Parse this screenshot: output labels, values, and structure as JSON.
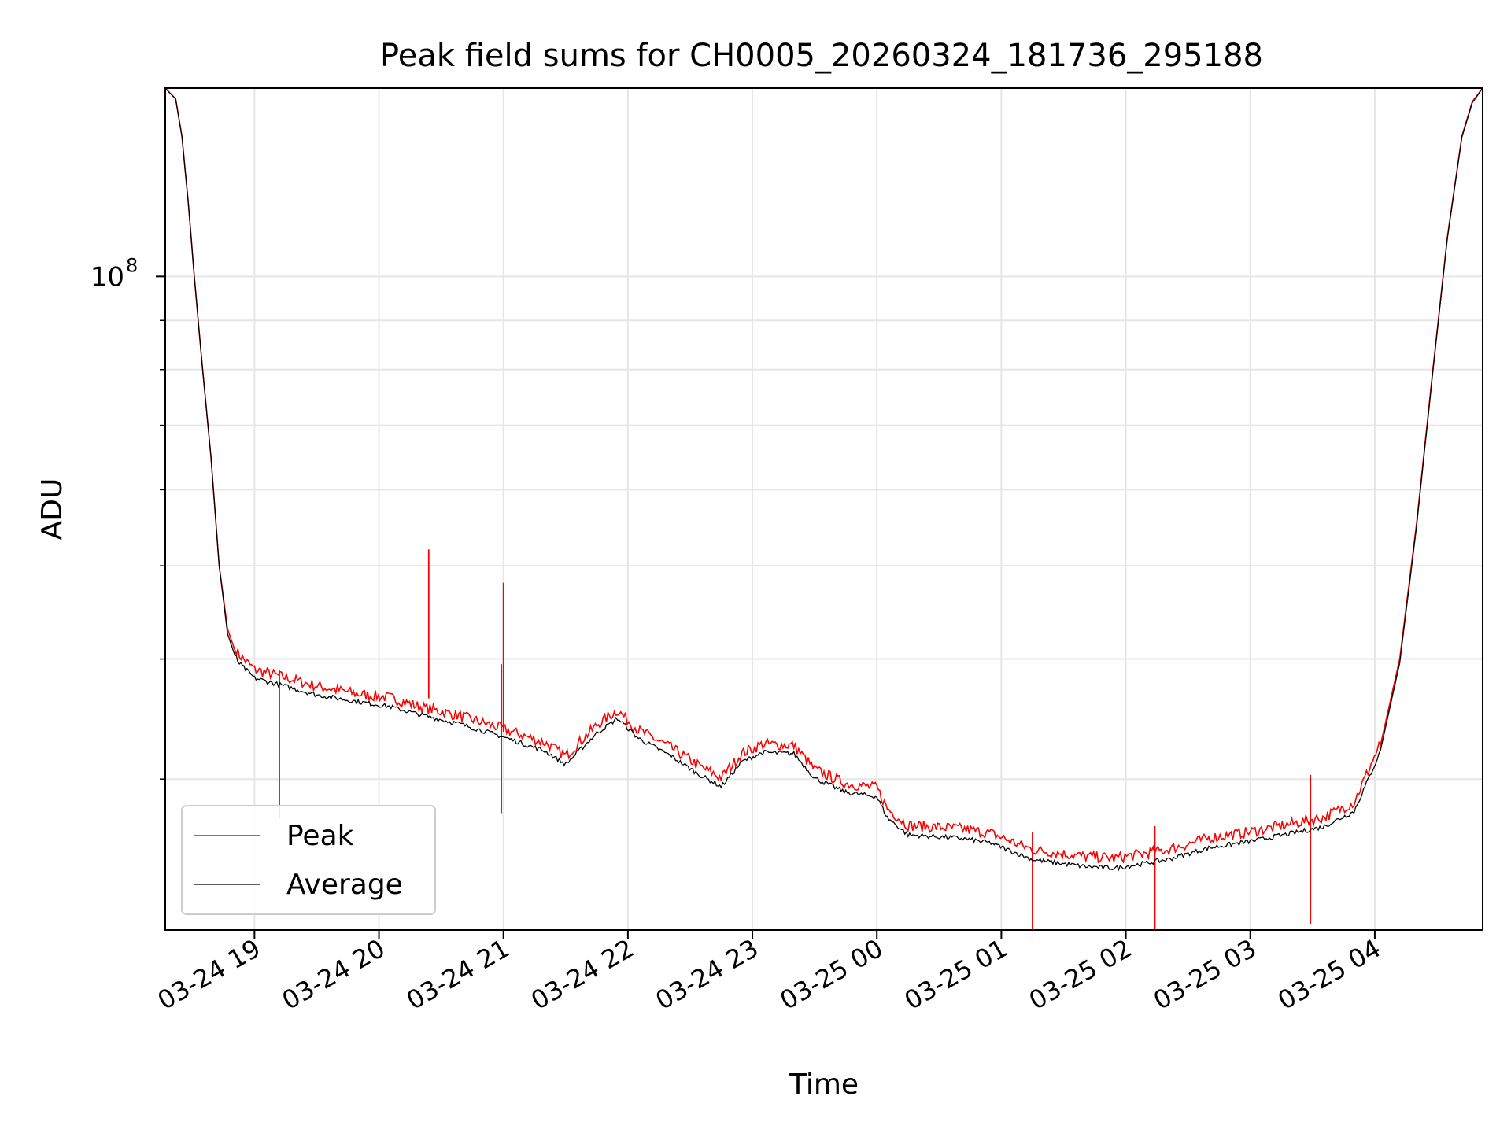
{
  "chart_data": {
    "type": "line",
    "title": "Peak field sums for CH0005_20260324_181736_295188",
    "xlabel": "Time",
    "ylabel": "ADU",
    "yscale": "log",
    "xlim": [
      "2026-03-24 18:17",
      "2026-03-25 04:52"
    ],
    "ylim": [
      20900000,
      157000000
    ],
    "x_tick_labels": [
      "03-24 19",
      "03-24 20",
      "03-24 21",
      "03-24 22",
      "03-24 23",
      "03-25 00",
      "03-25 01",
      "03-25 02",
      "03-25 03",
      "03-25 04"
    ],
    "y_tick_labels": [
      {
        "base": "10",
        "exp": "8"
      }
    ],
    "grid": true,
    "legend_position": "lower-left",
    "series": [
      {
        "name": "Peak",
        "color": "#ff0000",
        "points": [
          [
            "2026-03-24 18:17",
            157000000
          ],
          [
            "2026-03-24 18:22",
            153000000
          ],
          [
            "2026-03-24 18:25",
            140000000
          ],
          [
            "2026-03-24 18:28",
            120000000
          ],
          [
            "2026-03-24 18:31",
            100000000
          ],
          [
            "2026-03-24 18:35",
            80000000
          ],
          [
            "2026-03-24 18:39",
            65000000
          ],
          [
            "2026-03-24 18:43",
            50000000
          ],
          [
            "2026-03-24 18:47",
            43000000
          ],
          [
            "2026-03-24 18:52",
            40000000
          ],
          [
            "2026-03-24 19:00",
            38500000
          ],
          [
            "2026-03-24 19:10",
            38000000
          ],
          [
            "2026-03-24 19:30",
            37000000
          ],
          [
            "2026-03-24 19:50",
            36300000
          ],
          [
            "2026-03-24 20:05",
            36000000
          ],
          [
            "2026-03-24 20:20",
            35200000
          ],
          [
            "2026-03-24 20:40",
            34400000
          ],
          [
            "2026-03-24 21:00",
            33400000
          ],
          [
            "2026-03-24 21:20",
            32300000
          ],
          [
            "2026-03-24 21:30",
            31300000
          ],
          [
            "2026-03-24 21:45",
            33700000
          ],
          [
            "2026-03-24 21:55",
            34900000
          ],
          [
            "2026-03-24 22:05",
            33300000
          ],
          [
            "2026-03-24 22:20",
            32000000
          ],
          [
            "2026-03-24 22:35",
            30500000
          ],
          [
            "2026-03-24 22:45",
            29700000
          ],
          [
            "2026-03-24 22:55",
            31500000
          ],
          [
            "2026-03-24 23:05",
            32200000
          ],
          [
            "2026-03-24 23:20",
            32100000
          ],
          [
            "2026-03-24 23:30",
            30300000
          ],
          [
            "2026-03-24 23:45",
            29300000
          ],
          [
            "2026-03-25 00:00",
            29000000
          ],
          [
            "2026-03-25 00:05",
            27600000
          ],
          [
            "2026-03-25 00:15",
            26500000
          ],
          [
            "2026-03-25 00:40",
            26300000
          ],
          [
            "2026-03-25 00:55",
            26000000
          ],
          [
            "2026-03-25 01:15",
            25000000
          ],
          [
            "2026-03-25 01:40",
            24600000
          ],
          [
            "2026-03-25 01:55",
            24500000
          ],
          [
            "2026-03-25 02:20",
            25000000
          ],
          [
            "2026-03-25 02:40",
            25700000
          ],
          [
            "2026-03-25 03:00",
            26100000
          ],
          [
            "2026-03-25 03:20",
            26600000
          ],
          [
            "2026-03-25 03:35",
            27000000
          ],
          [
            "2026-03-25 03:50",
            28000000
          ],
          [
            "2026-03-25 04:02",
            32000000
          ],
          [
            "2026-03-25 04:12",
            40000000
          ],
          [
            "2026-03-25 04:20",
            55000000
          ],
          [
            "2026-03-25 04:28",
            80000000
          ],
          [
            "2026-03-25 04:35",
            110000000
          ],
          [
            "2026-03-25 04:42",
            140000000
          ],
          [
            "2026-03-25 04:47",
            152000000
          ],
          [
            "2026-03-25 04:52",
            157000000
          ]
        ],
        "spikes": [
          [
            "2026-03-24 20:24",
            52000000
          ],
          [
            "2026-03-24 20:59",
            39500000
          ],
          [
            "2026-03-24 21:00",
            48000000
          ],
          [
            "2026-03-24 19:12",
            39000000
          ],
          [
            "2026-03-25 01:15",
            26400000
          ],
          [
            "2026-03-25 02:14",
            26800000
          ],
          [
            "2026-03-25 03:29",
            30300000
          ]
        ]
      },
      {
        "name": "Average",
        "color": "#000000",
        "points": [
          [
            "2026-03-24 18:17",
            157000000
          ],
          [
            "2026-03-24 18:22",
            153000000
          ],
          [
            "2026-03-24 18:25",
            140000000
          ],
          [
            "2026-03-24 18:28",
            120000000
          ],
          [
            "2026-03-24 18:31",
            100000000
          ],
          [
            "2026-03-24 18:35",
            80000000
          ],
          [
            "2026-03-24 18:39",
            65000000
          ],
          [
            "2026-03-24 18:43",
            50000000
          ],
          [
            "2026-03-24 18:47",
            42500000
          ],
          [
            "2026-03-24 18:52",
            39500000
          ],
          [
            "2026-03-24 19:00",
            38000000
          ],
          [
            "2026-03-24 19:10",
            37500000
          ],
          [
            "2026-03-24 19:30",
            36500000
          ],
          [
            "2026-03-24 19:50",
            35900000
          ],
          [
            "2026-03-24 20:05",
            35500000
          ],
          [
            "2026-03-24 20:20",
            34800000
          ],
          [
            "2026-03-24 20:40",
            34000000
          ],
          [
            "2026-03-24 21:00",
            33000000
          ],
          [
            "2026-03-24 21:20",
            31900000
          ],
          [
            "2026-03-24 21:30",
            30900000
          ],
          [
            "2026-03-24 21:45",
            33300000
          ],
          [
            "2026-03-24 21:55",
            34500000
          ],
          [
            "2026-03-24 22:05",
            32900000
          ],
          [
            "2026-03-24 22:20",
            31600000
          ],
          [
            "2026-03-24 22:35",
            30100000
          ],
          [
            "2026-03-24 22:45",
            29300000
          ],
          [
            "2026-03-24 22:55",
            31100000
          ],
          [
            "2026-03-24 23:05",
            31800000
          ],
          [
            "2026-03-24 23:20",
            31700000
          ],
          [
            "2026-03-24 23:30",
            29900000
          ],
          [
            "2026-03-24 23:45",
            28900000
          ],
          [
            "2026-03-25 00:00",
            28600000
          ],
          [
            "2026-03-25 00:05",
            27200000
          ],
          [
            "2026-03-25 00:15",
            26100000
          ],
          [
            "2026-03-25 00:40",
            25900000
          ],
          [
            "2026-03-25 00:55",
            25600000
          ],
          [
            "2026-03-25 01:15",
            24600000
          ],
          [
            "2026-03-25 01:40",
            24200000
          ],
          [
            "2026-03-25 01:55",
            24100000
          ],
          [
            "2026-03-25 02:20",
            24600000
          ],
          [
            "2026-03-25 02:40",
            25300000
          ],
          [
            "2026-03-25 03:00",
            25700000
          ],
          [
            "2026-03-25 03:20",
            26200000
          ],
          [
            "2026-03-25 03:35",
            26600000
          ],
          [
            "2026-03-25 03:50",
            27600000
          ],
          [
            "2026-03-25 04:02",
            31600000
          ],
          [
            "2026-03-25 04:12",
            39600000
          ],
          [
            "2026-03-25 04:20",
            54600000
          ],
          [
            "2026-03-25 04:28",
            79600000
          ],
          [
            "2026-03-25 04:35",
            109600000
          ],
          [
            "2026-03-25 04:42",
            139600000
          ],
          [
            "2026-03-25 04:47",
            151600000
          ],
          [
            "2026-03-25 04:52",
            157000000
          ]
        ]
      }
    ]
  }
}
